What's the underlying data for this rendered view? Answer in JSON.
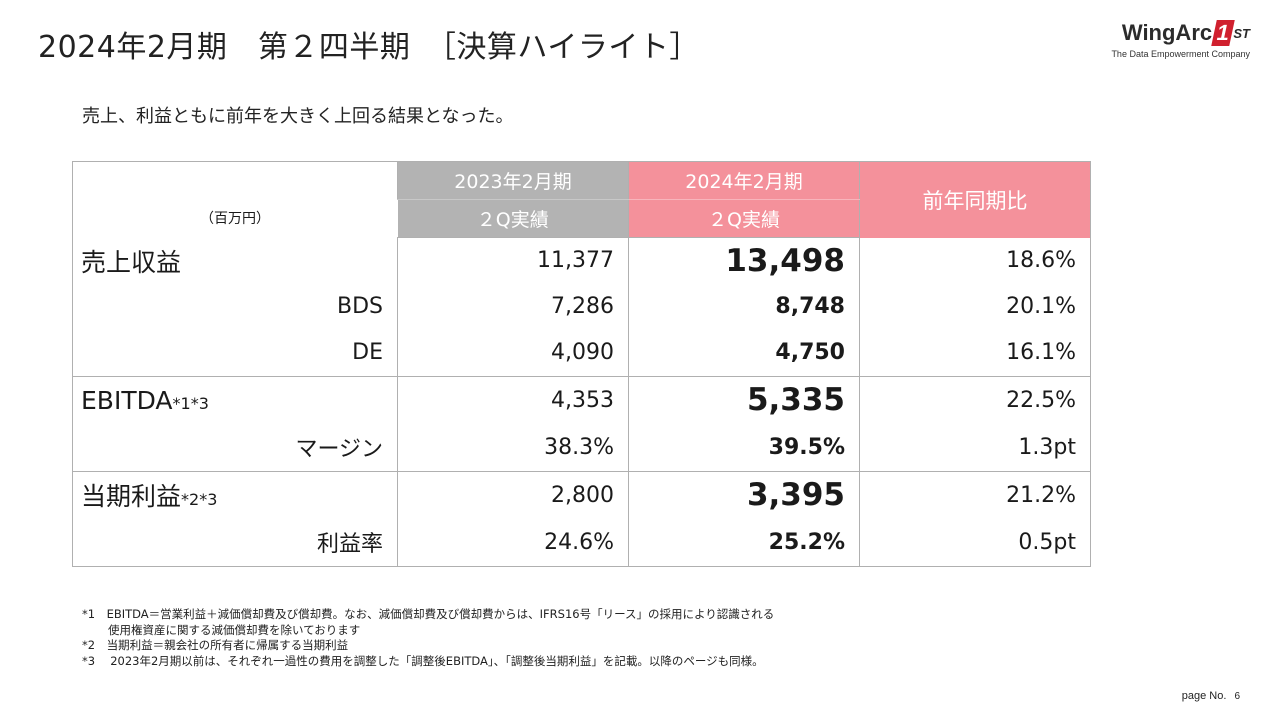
{
  "header": {
    "title": "2024年2月期　第２四半期　［決算ハイライト］",
    "logo_text": "WingArc",
    "logo_mark": "1",
    "logo_suffix": "ST",
    "logo_tagline": "The Data Empowerment Company"
  },
  "subtitle": "売上、利益ともに前年を大きく上回る結果となった。",
  "table": {
    "unit_label": "（百万円）",
    "col_prev_line1": "2023年2月期",
    "col_prev_line2": "２Q実績",
    "col_curr_line1": "2024年2月期",
    "col_curr_line2": "２Q実績",
    "col_yoy": "前年同期比",
    "rows": {
      "revenue": {
        "label": "売上収益",
        "prev": "11,377",
        "curr": "13,498",
        "yoy": "18.6%"
      },
      "bds": {
        "label": "BDS",
        "prev": "7,286",
        "curr": "8,748",
        "yoy": "20.1%"
      },
      "de": {
        "label": "DE",
        "prev": "4,090",
        "curr": "4,750",
        "yoy": "16.1%"
      },
      "ebitda": {
        "label": "EBITDA",
        "note": "*1*3",
        "prev": "4,353",
        "curr": "5,335",
        "yoy": "22.5%"
      },
      "margin": {
        "label": "マージン",
        "prev": "38.3%",
        "curr": "39.5%",
        "yoy": "1.3pt"
      },
      "net": {
        "label": "当期利益",
        "note": "*2*3",
        "prev": "2,800",
        "curr": "3,395",
        "yoy": "21.2%"
      },
      "net_rate": {
        "label": "利益率",
        "prev": "24.6%",
        "curr": "25.2%",
        "yoy": "0.5pt"
      }
    }
  },
  "footnotes": {
    "n1a": "*1　EBITDA＝営業利益＋減価償却費及び償却費。なお、減価償却費及び償却費からは、IFRS16号「リース」の採用により認識される",
    "n1b": "使用権資産に関する減価償却費を除いております",
    "n2": "*2　当期利益＝親会社の所有者に帰属する当期利益",
    "n3": "*3　 2023年2月期以前は、それぞれ一過性の費用を調整した「調整後EBITDA」、「調整後当期利益」を記載。以降のページも同様。"
  },
  "page": {
    "label": "page No.",
    "number": "6"
  },
  "colors": {
    "prev_header": "#b3b3b3",
    "curr_header": "#f4919b",
    "logo_red": "#d0202e"
  }
}
